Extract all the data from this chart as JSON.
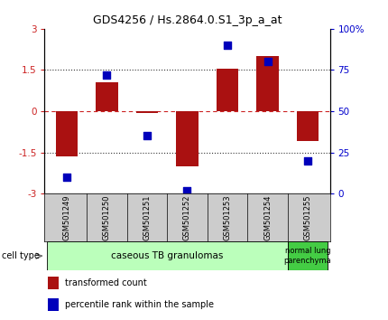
{
  "title": "GDS4256 / Hs.2864.0.S1_3p_a_at",
  "samples": [
    "GSM501249",
    "GSM501250",
    "GSM501251",
    "GSM501252",
    "GSM501253",
    "GSM501254",
    "GSM501255"
  ],
  "transformed_counts": [
    -1.65,
    1.05,
    -0.05,
    -2.0,
    1.55,
    2.0,
    -1.1
  ],
  "percentile_ranks": [
    10,
    72,
    35,
    2,
    90,
    80,
    20
  ],
  "ylim_left": [
    -3,
    3
  ],
  "ylim_right": [
    0,
    100
  ],
  "bar_color": "#AA1111",
  "dot_color": "#0000BB",
  "hline_dashed_color": "#CC2222",
  "hline_dotted_color": "#333333",
  "hline_y": [
    1.5,
    -1.5
  ],
  "hline_y0": 0,
  "yticks_left": [
    -3,
    -1.5,
    0,
    1.5,
    3
  ],
  "yticks_left_labels": [
    "-3",
    "-1.5",
    "0",
    "1.5",
    "3"
  ],
  "yticks_right": [
    0,
    25,
    50,
    75,
    100
  ],
  "yticks_right_labels": [
    "0",
    "25",
    "50",
    "75",
    "100%"
  ],
  "cell_type_group1_label": "caseous TB granulomas",
  "cell_type_group1_color": "#BBFFBB",
  "cell_type_group1_span": 6,
  "cell_type_group2_label": "normal lung\nparenchyma",
  "cell_type_group2_color": "#44CC44",
  "cell_type_group2_span": 1,
  "cell_type_label": "cell type",
  "legend_items": [
    {
      "color": "#AA1111",
      "label": "transformed count"
    },
    {
      "color": "#0000BB",
      "label": "percentile rank within the sample"
    }
  ],
  "bg_color": "#FFFFFF",
  "tick_label_color_left": "#CC2222",
  "tick_label_color_right": "#0000CC",
  "bar_width": 0.55,
  "dot_size": 28,
  "sample_box_color": "#CCCCCC",
  "title_fontsize": 9
}
